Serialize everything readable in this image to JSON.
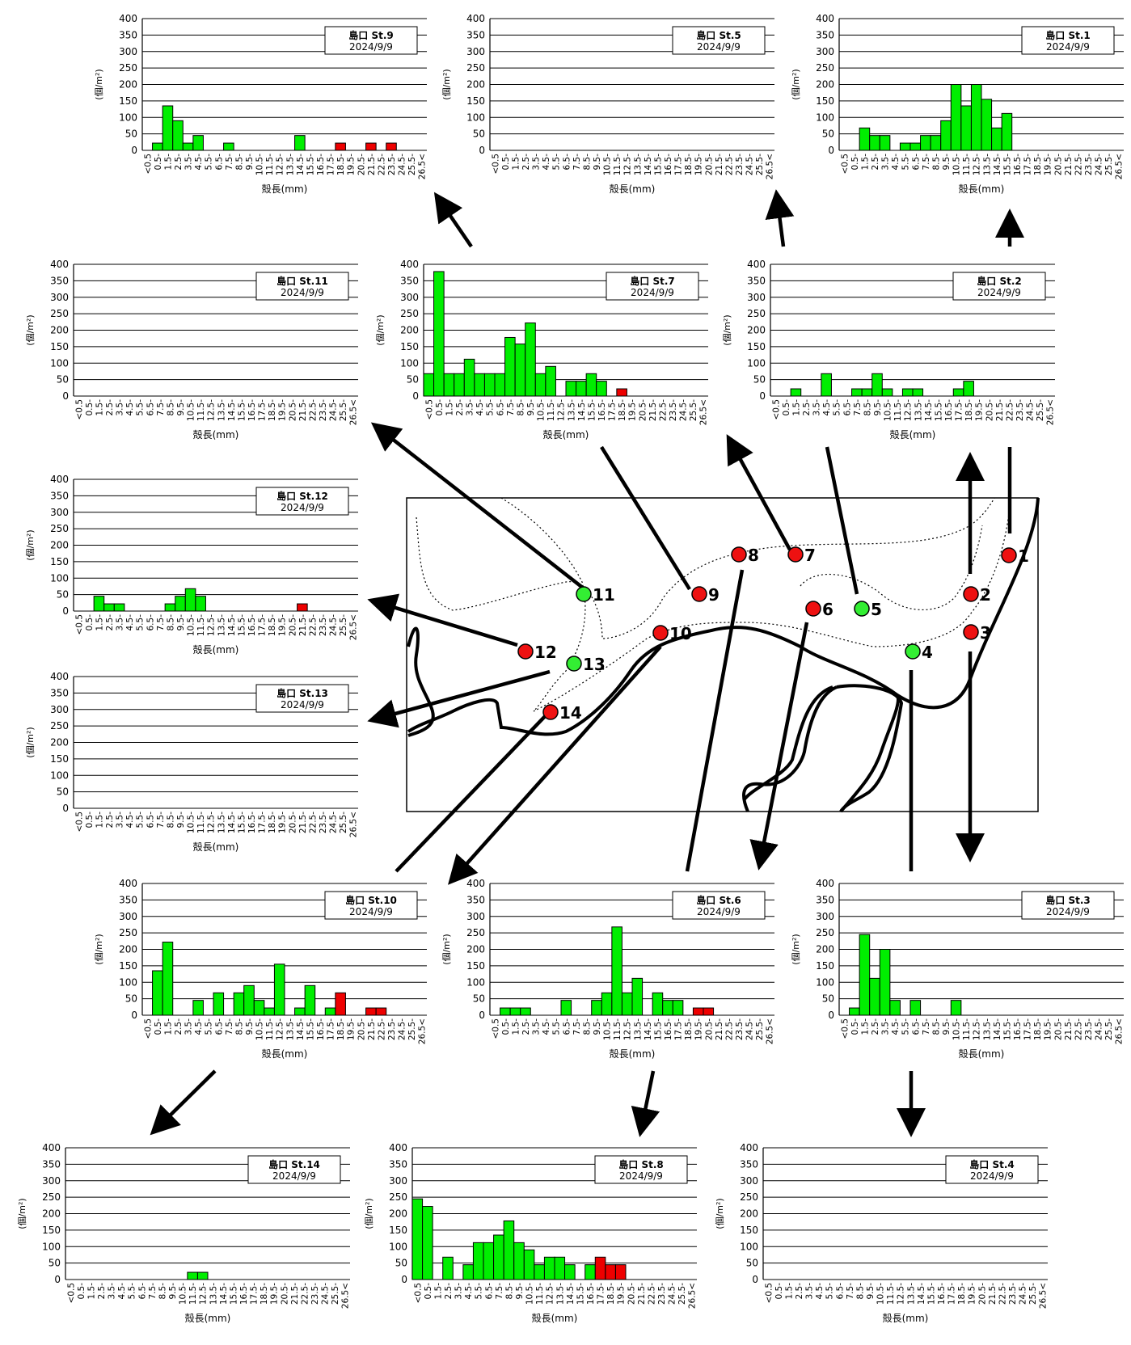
{
  "site": "島口",
  "date": "2024/9/9",
  "ylabel": "(個/m²)",
  "xlabel": "殻長(mm)",
  "categories": [
    "<0.5",
    "0.5-",
    "1.5-",
    "2.5-",
    "3.5-",
    "4.5-",
    "5.5-",
    "6.5-",
    "7.5-",
    "8.5-",
    "9.5-",
    "10.5-",
    "11.5-",
    "12.5-",
    "13.5-",
    "14.5-",
    "15.5-",
    "16.5-",
    "17.5-",
    "18.5-",
    "19.5-",
    "20.5-",
    "21.5-",
    "22.5-",
    "23.5-",
    "24.5-",
    "25.5-",
    "26.5<"
  ],
  "colors": {
    "live": "#00ee00",
    "dead": "#ee0000",
    "station_green": "#33ee33",
    "station_red": "#ee1111"
  },
  "stations_on_map": [
    {
      "no": "1",
      "color": "red"
    },
    {
      "no": "2",
      "color": "red"
    },
    {
      "no": "3",
      "color": "red"
    },
    {
      "no": "4",
      "color": "green"
    },
    {
      "no": "5",
      "color": "green"
    },
    {
      "no": "6",
      "color": "red"
    },
    {
      "no": "7",
      "color": "red"
    },
    {
      "no": "8",
      "color": "red"
    },
    {
      "no": "9",
      "color": "red"
    },
    {
      "no": "10",
      "color": "red"
    },
    {
      "no": "11",
      "color": "green"
    },
    {
      "no": "12",
      "color": "red"
    },
    {
      "no": "13",
      "color": "green"
    },
    {
      "no": "14",
      "color": "red"
    }
  ],
  "chart_data": [
    {
      "type": "bar",
      "station": "St.9",
      "legend_l1": "島口  St.9",
      "legend_l2": "2024/9/9",
      "ylim": [
        0,
        400
      ],
      "yticks": [
        0,
        50,
        100,
        150,
        200,
        250,
        300,
        350,
        400
      ],
      "grid": true,
      "values": [
        0,
        22,
        135,
        90,
        22,
        45,
        0,
        0,
        22,
        0,
        0,
        0,
        0,
        0,
        0,
        45,
        0,
        0,
        0,
        22,
        0,
        0,
        22,
        0,
        22,
        0,
        0,
        0
      ],
      "dead": [
        0,
        0,
        0,
        0,
        0,
        0,
        0,
        0,
        0,
        0,
        0,
        0,
        0,
        0,
        0,
        0,
        0,
        0,
        0,
        1,
        0,
        0,
        1,
        0,
        1,
        0,
        0,
        0
      ]
    },
    {
      "type": "bar",
      "station": "St.5",
      "legend_l1": "島口  St.5",
      "legend_l2": "2024/9/9",
      "ylim": [
        0,
        400
      ],
      "yticks": [
        0,
        50,
        100,
        150,
        200,
        250,
        300,
        350,
        400
      ],
      "grid": true,
      "values": [
        0,
        0,
        0,
        0,
        0,
        0,
        0,
        0,
        0,
        0,
        0,
        0,
        0,
        0,
        0,
        0,
        0,
        0,
        0,
        0,
        0,
        0,
        0,
        0,
        0,
        0,
        0,
        0
      ],
      "dead": [
        0,
        0,
        0,
        0,
        0,
        0,
        0,
        0,
        0,
        0,
        0,
        0,
        0,
        0,
        0,
        0,
        0,
        0,
        0,
        0,
        0,
        0,
        0,
        0,
        0,
        0,
        0,
        0
      ]
    },
    {
      "type": "bar",
      "station": "St.1",
      "legend_l1": "島口  St.1",
      "legend_l2": "2024/9/9",
      "ylim": [
        0,
        400
      ],
      "yticks": [
        0,
        50,
        100,
        150,
        200,
        250,
        300,
        350,
        400
      ],
      "grid": true,
      "values": [
        0,
        0,
        68,
        45,
        45,
        0,
        22,
        22,
        45,
        45,
        90,
        200,
        135,
        200,
        155,
        68,
        112,
        0,
        0,
        0,
        0,
        0,
        0,
        0,
        0,
        0,
        0,
        0
      ],
      "dead": [
        0,
        0,
        0,
        0,
        0,
        0,
        0,
        0,
        0,
        0,
        0,
        0,
        0,
        0,
        0,
        0,
        0,
        0,
        0,
        0,
        0,
        0,
        0,
        0,
        0,
        0,
        0,
        0
      ]
    },
    {
      "type": "bar",
      "station": "St.11",
      "legend_l1": "島口  St.11",
      "legend_l2": "2024/9/9",
      "ylim": [
        0,
        400
      ],
      "yticks": [
        0,
        50,
        100,
        150,
        200,
        250,
        300,
        350,
        400
      ],
      "grid": true,
      "values": [
        0,
        0,
        0,
        0,
        0,
        0,
        0,
        0,
        0,
        0,
        0,
        0,
        0,
        0,
        0,
        0,
        0,
        0,
        0,
        0,
        0,
        0,
        0,
        0,
        0,
        0,
        0,
        0
      ],
      "dead": [
        0,
        0,
        0,
        0,
        0,
        0,
        0,
        0,
        0,
        0,
        0,
        0,
        0,
        0,
        0,
        0,
        0,
        0,
        0,
        0,
        0,
        0,
        0,
        0,
        0,
        0,
        0,
        0
      ]
    },
    {
      "type": "bar",
      "station": "St.7",
      "legend_l1": "島口  St.7",
      "legend_l2": "2024/9/9",
      "ylim": [
        0,
        400
      ],
      "yticks": [
        0,
        50,
        100,
        150,
        200,
        250,
        300,
        350,
        400
      ],
      "grid": true,
      "values": [
        68,
        378,
        68,
        68,
        112,
        68,
        68,
        68,
        178,
        158,
        222,
        68,
        90,
        0,
        45,
        45,
        68,
        45,
        0,
        22,
        0,
        0,
        0,
        0,
        0,
        0,
        0,
        0
      ],
      "dead": [
        0,
        0,
        0,
        0,
        0,
        0,
        0,
        0,
        0,
        0,
        0,
        0,
        0,
        0,
        0,
        0,
        0,
        0,
        0,
        1,
        0,
        0,
        0,
        0,
        0,
        0,
        0,
        0
      ]
    },
    {
      "type": "bar",
      "station": "St.2",
      "legend_l1": "島口  St.2",
      "legend_l2": "2024/9/9",
      "ylim": [
        0,
        400
      ],
      "yticks": [
        0,
        50,
        100,
        150,
        200,
        250,
        300,
        350,
        400
      ],
      "grid": true,
      "values": [
        0,
        0,
        22,
        0,
        0,
        68,
        0,
        0,
        22,
        22,
        68,
        22,
        0,
        22,
        22,
        0,
        0,
        0,
        22,
        45,
        0,
        0,
        0,
        0,
        0,
        0,
        0,
        0
      ],
      "dead": [
        0,
        0,
        0,
        0,
        0,
        0,
        0,
        0,
        0,
        0,
        0,
        0,
        0,
        0,
        0,
        0,
        0,
        0,
        0,
        0,
        0,
        0,
        0,
        0,
        0,
        0,
        0,
        0
      ]
    },
    {
      "type": "bar",
      "station": "St.12",
      "legend_l1": "島口  St.12",
      "legend_l2": "2024/9/9",
      "ylim": [
        0,
        400
      ],
      "yticks": [
        0,
        50,
        100,
        150,
        200,
        250,
        300,
        350,
        400
      ],
      "grid": true,
      "values": [
        0,
        0,
        45,
        22,
        22,
        0,
        0,
        0,
        0,
        22,
        45,
        68,
        45,
        0,
        0,
        0,
        0,
        0,
        0,
        0,
        0,
        0,
        22,
        0,
        0,
        0,
        0,
        0
      ],
      "dead": [
        0,
        0,
        0,
        0,
        0,
        0,
        0,
        0,
        0,
        0,
        0,
        0,
        0,
        0,
        0,
        0,
        0,
        0,
        0,
        0,
        0,
        0,
        1,
        0,
        0,
        0,
        0,
        0
      ]
    },
    {
      "type": "bar",
      "station": "St.13",
      "legend_l1": "島口  St.13",
      "legend_l2": "2024/9/9",
      "ylim": [
        0,
        400
      ],
      "yticks": [
        0,
        50,
        100,
        150,
        200,
        250,
        300,
        350,
        400
      ],
      "grid": true,
      "values": [
        0,
        0,
        0,
        0,
        0,
        0,
        0,
        0,
        0,
        0,
        0,
        0,
        0,
        0,
        0,
        0,
        0,
        0,
        0,
        0,
        0,
        0,
        0,
        0,
        0,
        0,
        0,
        0
      ],
      "dead": [
        0,
        0,
        0,
        0,
        0,
        0,
        0,
        0,
        0,
        0,
        0,
        0,
        0,
        0,
        0,
        0,
        0,
        0,
        0,
        0,
        0,
        0,
        0,
        0,
        0,
        0,
        0,
        0
      ]
    },
    {
      "type": "bar",
      "station": "St.10",
      "legend_l1": "島口  St.10",
      "legend_l2": "2024/9/9",
      "ylim": [
        0,
        400
      ],
      "yticks": [
        0,
        50,
        100,
        150,
        200,
        250,
        300,
        350,
        400
      ],
      "grid": true,
      "values": [
        0,
        135,
        222,
        0,
        0,
        45,
        0,
        68,
        0,
        68,
        90,
        45,
        22,
        155,
        0,
        22,
        90,
        0,
        22,
        68,
        0,
        0,
        22,
        22,
        0,
        0,
        0,
        0
      ],
      "dead": [
        0,
        0,
        0,
        0,
        0,
        0,
        0,
        0,
        0,
        0,
        0,
        0,
        0,
        0,
        0,
        0,
        0,
        0,
        0,
        1,
        0,
        0,
        1,
        1,
        0,
        0,
        0,
        0
      ]
    },
    {
      "type": "bar",
      "station": "St.6",
      "legend_l1": "島口  St.6",
      "legend_l2": "2024/9/9",
      "ylim": [
        0,
        400
      ],
      "yticks": [
        0,
        50,
        100,
        150,
        200,
        250,
        300,
        350,
        400
      ],
      "grid": true,
      "values": [
        0,
        22,
        22,
        22,
        0,
        0,
        0,
        45,
        0,
        0,
        45,
        68,
        268,
        68,
        112,
        0,
        68,
        45,
        45,
        0,
        22,
        22,
        0,
        0,
        0,
        0,
        0,
        0
      ],
      "dead": [
        0,
        0,
        0,
        0,
        0,
        0,
        0,
        0,
        0,
        0,
        0,
        0,
        0,
        0,
        0,
        0,
        0,
        0,
        0,
        0,
        1,
        1,
        0,
        0,
        0,
        0,
        0,
        0
      ]
    },
    {
      "type": "bar",
      "station": "St.3",
      "legend_l1": "島口  St.3",
      "legend_l2": "2024/9/9",
      "ylim": [
        0,
        400
      ],
      "yticks": [
        0,
        50,
        100,
        150,
        200,
        250,
        300,
        350,
        400
      ],
      "grid": true,
      "values": [
        0,
        22,
        245,
        112,
        200,
        45,
        0,
        45,
        0,
        0,
        0,
        45,
        0,
        0,
        0,
        0,
        0,
        0,
        0,
        0,
        0,
        0,
        0,
        0,
        0,
        0,
        0,
        0
      ],
      "dead": [
        0,
        0,
        0,
        0,
        0,
        0,
        0,
        0,
        0,
        0,
        0,
        0,
        0,
        0,
        0,
        0,
        0,
        0,
        0,
        0,
        0,
        0,
        0,
        0,
        0,
        0,
        0,
        0
      ]
    },
    {
      "type": "bar",
      "station": "St.14",
      "legend_l1": "島口  St.14",
      "legend_l2": "2024/9/9",
      "ylim": [
        0,
        400
      ],
      "yticks": [
        0,
        50,
        100,
        150,
        200,
        250,
        300,
        350,
        400
      ],
      "grid": true,
      "values": [
        0,
        0,
        0,
        0,
        0,
        0,
        0,
        0,
        0,
        0,
        0,
        0,
        22,
        22,
        0,
        0,
        0,
        0,
        0,
        0,
        0,
        0,
        0,
        0,
        0,
        0,
        0,
        0
      ],
      "dead": [
        0,
        0,
        0,
        0,
        0,
        0,
        0,
        0,
        0,
        0,
        0,
        0,
        0,
        0,
        0,
        0,
        0,
        0,
        0,
        0,
        0,
        0,
        0,
        0,
        0,
        0,
        0,
        0
      ]
    },
    {
      "type": "bar",
      "station": "St.8",
      "legend_l1": "島口  St.8",
      "legend_l2": "2024/9/9",
      "ylim": [
        0,
        400
      ],
      "yticks": [
        0,
        50,
        100,
        150,
        200,
        250,
        300,
        350,
        400
      ],
      "grid": true,
      "values": [
        245,
        222,
        0,
        68,
        0,
        45,
        112,
        112,
        135,
        178,
        112,
        90,
        45,
        68,
        68,
        45,
        0,
        45,
        68,
        45,
        45,
        0,
        0,
        0,
        0,
        0,
        0,
        0
      ],
      "dead": [
        0,
        0,
        0,
        0,
        0,
        0,
        0,
        0,
        0,
        0,
        0,
        0,
        0,
        0,
        0,
        0,
        0,
        0,
        1,
        1,
        1,
        0,
        0,
        0,
        0,
        0,
        0,
        0
      ]
    },
    {
      "type": "bar",
      "station": "St.4",
      "legend_l1": "島口  St.4",
      "legend_l2": "2024/9/9",
      "ylim": [
        0,
        400
      ],
      "yticks": [
        0,
        50,
        100,
        150,
        200,
        250,
        300,
        350,
        400
      ],
      "grid": true,
      "values": [
        0,
        0,
        0,
        0,
        0,
        0,
        0,
        0,
        0,
        0,
        0,
        0,
        0,
        0,
        0,
        0,
        0,
        0,
        0,
        0,
        0,
        0,
        0,
        0,
        0,
        0,
        0,
        0
      ],
      "dead": [
        0,
        0,
        0,
        0,
        0,
        0,
        0,
        0,
        0,
        0,
        0,
        0,
        0,
        0,
        0,
        0,
        0,
        0,
        0,
        0,
        0,
        0,
        0,
        0,
        0,
        0,
        0,
        0
      ]
    }
  ]
}
